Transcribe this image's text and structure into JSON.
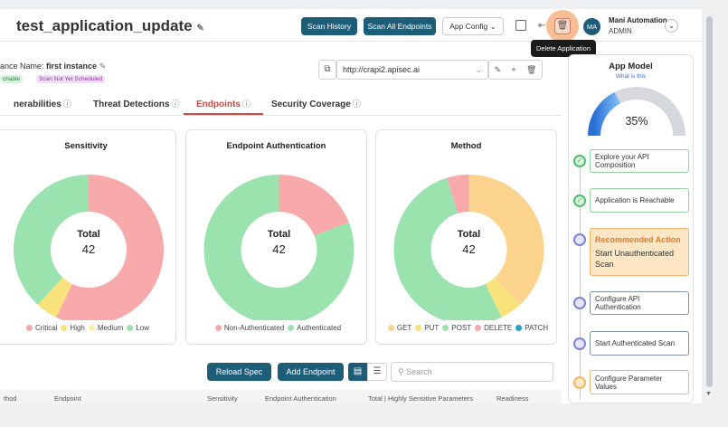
{
  "header": {
    "title": "test_application_update",
    "buttons": [
      "Scan History",
      "Scan All Endpoints",
      "App Config"
    ],
    "tooltip": "Delete Application",
    "user": {
      "initials": "MA",
      "name": "Mani Automation",
      "role": "ADMIN"
    }
  },
  "instance": {
    "label": "ance Name:",
    "name": "first instance",
    "tags": [
      "chable",
      "Scan Not Yet Scheduled"
    ],
    "url": "http://crapi2.apisec.ai"
  },
  "tabs": {
    "items": [
      "nerabilities",
      "Threat Detections",
      "Endpoints",
      "Security Coverage"
    ],
    "active": 2
  },
  "chart_data": [
    {
      "type": "pie",
      "title": "Sensitivity",
      "center_label": "Total",
      "center_value": 42,
      "categories": [
        "Critical",
        "High",
        "Medium",
        "Low"
      ],
      "values": [
        24,
        2,
        0,
        16
      ],
      "colors": [
        "#f8a9a9",
        "#f7e27c",
        "#faf0a2",
        "#9be3ae"
      ]
    },
    {
      "type": "pie",
      "title": "Endpoint Authentication",
      "center_label": "Total",
      "center_value": 42,
      "categories": [
        "Non-Authenticated",
        "Authenticated"
      ],
      "values": [
        8,
        34
      ],
      "colors": [
        "#f8a9a9",
        "#9be3ae"
      ]
    },
    {
      "type": "pie",
      "title": "Method",
      "center_label": "Total",
      "center_value": 42,
      "categories": [
        "GET",
        "PUT",
        "POST",
        "DELETE",
        "PATCH"
      ],
      "values": [
        16,
        2,
        22,
        2,
        0
      ],
      "colors": [
        "#fcd38d",
        "#f7e27c",
        "#9be3ae",
        "#f8a9a9",
        "#1ea5c8"
      ]
    }
  ],
  "app_model": {
    "title": "App Model",
    "link": "What is this",
    "gauge": {
      "value": 35,
      "label": "35%"
    },
    "steps": [
      {
        "text": "Explore your API Composition",
        "status": "done"
      },
      {
        "text": "Application is Reachable",
        "status": "done"
      },
      {
        "title": "Recommended Action",
        "text": "Start Unauthenticated Scan",
        "status": "recommended"
      },
      {
        "text": "Configure API Authentication",
        "status": "todo"
      },
      {
        "text": "Start Authenticated Scan",
        "status": "todo"
      },
      {
        "text": "Configure Parameter Values",
        "status": "warning"
      }
    ]
  },
  "toolbar": {
    "buttons": [
      "Reload Spec",
      "Add Endpoint"
    ],
    "search_placeholder": "Search"
  },
  "table": {
    "columns": [
      "thod",
      "Endpoint",
      "Sensitivity",
      "Endpoint Authentication",
      "Total | Highly Sensitive Parameters",
      "Readiness"
    ]
  }
}
